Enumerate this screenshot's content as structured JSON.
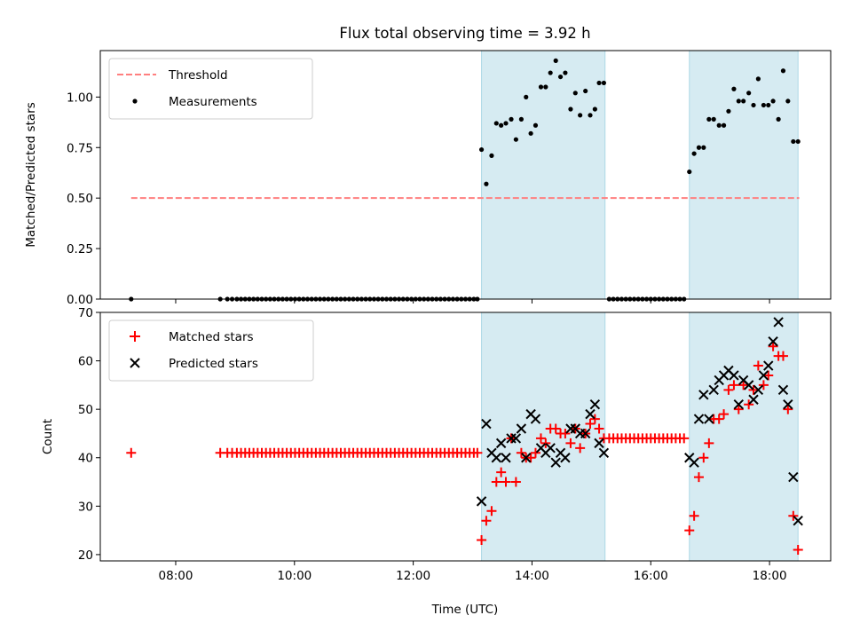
{
  "title": "Flux total observing time = 3.92 h",
  "colors": {
    "threshold": "#ff7f7f",
    "measurement": "#000000",
    "matched": "#ff0000",
    "predicted": "#000000",
    "shade": "#add8e6"
  },
  "chart_data": [
    {
      "type": "scatter",
      "ylabel": "Matched/Predicted stars",
      "ylim": [
        0,
        1.23
      ],
      "yticks": [
        0,
        0.25,
        0.5,
        0.75,
        1.0
      ],
      "ytick_labels": [
        "0.00",
        "0.25",
        "0.50",
        "0.75",
        "1.00"
      ],
      "xlim_hours": [
        6.73,
        19.03
      ],
      "xticks_hours": [
        8,
        10,
        12,
        14,
        16,
        18
      ],
      "xtick_labels": [
        "08:00",
        "10:00",
        "12:00",
        "14:00",
        "16:00",
        "18:00"
      ],
      "shaded_intervals_hours": [
        [
          13.15,
          15.23
        ],
        [
          16.65,
          18.48
        ]
      ],
      "legend": {
        "position": "top-left",
        "threshold_label": "Threshold",
        "measurements_label": "Measurements"
      },
      "threshold": {
        "value": 0.5,
        "x_range_hours": [
          7.25,
          18.5
        ]
      },
      "measurements": {
        "zero_times_hours": [
          7.25,
          8.75,
          8.87,
          8.95,
          9.03,
          9.1,
          9.17,
          9.24,
          9.31,
          9.38,
          9.45,
          9.52,
          9.59,
          9.66,
          9.73,
          9.8,
          9.87,
          9.94,
          10.01,
          10.08,
          10.15,
          10.22,
          10.29,
          10.36,
          10.43,
          10.5,
          10.57,
          10.64,
          10.71,
          10.78,
          10.85,
          10.92,
          10.99,
          11.06,
          11.13,
          11.2,
          11.27,
          11.34,
          11.41,
          11.48,
          11.55,
          11.62,
          11.69,
          11.76,
          11.83,
          11.9,
          11.97,
          12.04,
          12.11,
          12.18,
          12.25,
          12.32,
          12.39,
          12.46,
          12.53,
          12.6,
          12.67,
          12.74,
          12.81,
          12.88,
          12.95,
          13.02,
          13.08,
          15.3,
          15.37,
          15.44,
          15.51,
          15.58,
          15.65,
          15.72,
          15.79,
          15.86,
          15.93,
          16.0,
          16.07,
          16.14,
          16.21,
          16.28,
          16.35,
          16.42,
          16.49,
          16.56
        ],
        "points": [
          [
            13.15,
            0.74
          ],
          [
            13.23,
            0.57
          ],
          [
            13.32,
            0.71
          ],
          [
            13.4,
            0.87
          ],
          [
            13.48,
            0.86
          ],
          [
            13.56,
            0.87
          ],
          [
            13.65,
            0.89
          ],
          [
            13.73,
            0.79
          ],
          [
            13.82,
            0.89
          ],
          [
            13.9,
            1.0
          ],
          [
            13.98,
            0.82
          ],
          [
            14.06,
            0.86
          ],
          [
            14.15,
            1.05
          ],
          [
            14.23,
            1.05
          ],
          [
            14.31,
            1.12
          ],
          [
            14.4,
            1.18
          ],
          [
            14.48,
            1.1
          ],
          [
            14.56,
            1.12
          ],
          [
            14.65,
            0.94
          ],
          [
            14.73,
            1.02
          ],
          [
            14.81,
            0.91
          ],
          [
            14.9,
            1.03
          ],
          [
            14.98,
            0.91
          ],
          [
            15.06,
            0.94
          ],
          [
            15.13,
            1.07
          ],
          [
            15.21,
            1.07
          ],
          [
            16.65,
            0.63
          ],
          [
            16.73,
            0.72
          ],
          [
            16.81,
            0.75
          ],
          [
            16.89,
            0.75
          ],
          [
            16.98,
            0.89
          ],
          [
            17.06,
            0.89
          ],
          [
            17.15,
            0.86
          ],
          [
            17.23,
            0.86
          ],
          [
            17.31,
            0.93
          ],
          [
            17.4,
            1.04
          ],
          [
            17.48,
            0.98
          ],
          [
            17.56,
            0.98
          ],
          [
            17.65,
            1.02
          ],
          [
            17.73,
            0.96
          ],
          [
            17.81,
            1.09
          ],
          [
            17.9,
            0.96
          ],
          [
            17.98,
            0.96
          ],
          [
            18.06,
            0.98
          ],
          [
            18.15,
            0.89
          ],
          [
            18.23,
            1.13
          ],
          [
            18.31,
            0.98
          ],
          [
            18.4,
            0.78
          ],
          [
            18.48,
            0.78
          ]
        ]
      }
    },
    {
      "type": "scatter",
      "xlabel": "Time (UTC)",
      "ylabel": "Count",
      "ylim": [
        18.7,
        70
      ],
      "yticks": [
        20,
        30,
        40,
        50,
        60,
        70
      ],
      "ytick_labels": [
        "20",
        "30",
        "40",
        "50",
        "60",
        "70"
      ],
      "xlim_hours": [
        6.73,
        19.03
      ],
      "xticks_hours": [
        8,
        10,
        12,
        14,
        16,
        18
      ],
      "xtick_labels": [
        "08:00",
        "10:00",
        "12:00",
        "14:00",
        "16:00",
        "18:00"
      ],
      "shaded_intervals_hours": [
        [
          13.15,
          15.23
        ],
        [
          16.65,
          18.48
        ]
      ],
      "legend": {
        "position": "top-left",
        "matched_label": "Matched stars",
        "predicted_label": "Predicted stars"
      },
      "matched_stars": {
        "flat_segments": [
          {
            "value": 41,
            "times_hours": [
              7.25,
              8.75,
              8.87,
              8.95,
              9.03,
              9.1,
              9.17,
              9.24,
              9.31,
              9.38,
              9.45,
              9.52,
              9.59,
              9.66,
              9.73,
              9.8,
              9.87,
              9.94,
              10.01,
              10.08,
              10.15,
              10.22,
              10.29,
              10.36,
              10.43,
              10.5,
              10.57,
              10.64,
              10.71,
              10.78,
              10.85,
              10.92,
              10.99,
              11.06,
              11.13,
              11.2,
              11.27,
              11.34,
              11.41,
              11.48,
              11.55,
              11.62,
              11.69,
              11.76,
              11.83,
              11.9,
              11.97,
              12.04,
              12.11,
              12.18,
              12.25,
              12.32,
              12.39,
              12.46,
              12.53,
              12.6,
              12.67,
              12.74,
              12.81,
              12.88,
              12.95,
              13.02,
              13.08
            ]
          },
          {
            "value": 44,
            "times_hours": [
              15.3,
              15.37,
              15.44,
              15.51,
              15.58,
              15.65,
              15.72,
              15.79,
              15.86,
              15.93,
              16.0,
              16.07,
              16.14,
              16.21,
              16.28,
              16.35,
              16.42,
              16.49,
              16.56
            ]
          }
        ],
        "points": [
          [
            13.15,
            23
          ],
          [
            13.23,
            27
          ],
          [
            13.32,
            29
          ],
          [
            13.4,
            35
          ],
          [
            13.48,
            37
          ],
          [
            13.56,
            35
          ],
          [
            13.65,
            44
          ],
          [
            13.73,
            35
          ],
          [
            13.82,
            41
          ],
          [
            13.9,
            40
          ],
          [
            13.98,
            40
          ],
          [
            14.06,
            41
          ],
          [
            14.15,
            44
          ],
          [
            14.23,
            43
          ],
          [
            14.31,
            46
          ],
          [
            14.4,
            46
          ],
          [
            14.48,
            45
          ],
          [
            14.56,
            45
          ],
          [
            14.65,
            43
          ],
          [
            14.73,
            46
          ],
          [
            14.81,
            42
          ],
          [
            14.9,
            45
          ],
          [
            14.98,
            47
          ],
          [
            15.06,
            48
          ],
          [
            15.13,
            46
          ],
          [
            15.21,
            44
          ],
          [
            16.65,
            25
          ],
          [
            16.73,
            28
          ],
          [
            16.81,
            36
          ],
          [
            16.89,
            40
          ],
          [
            16.98,
            43
          ],
          [
            17.06,
            48
          ],
          [
            17.15,
            48
          ],
          [
            17.23,
            49
          ],
          [
            17.31,
            54
          ],
          [
            17.4,
            55
          ],
          [
            17.48,
            50
          ],
          [
            17.56,
            55
          ],
          [
            17.65,
            51
          ],
          [
            17.73,
            54
          ],
          [
            17.81,
            59
          ],
          [
            17.9,
            55
          ],
          [
            17.98,
            57
          ],
          [
            18.06,
            63
          ],
          [
            18.15,
            61
          ],
          [
            18.23,
            61
          ],
          [
            18.31,
            50
          ],
          [
            18.4,
            28
          ],
          [
            18.48,
            21
          ]
        ]
      },
      "predicted_stars": {
        "points": [
          [
            13.15,
            31
          ],
          [
            13.23,
            47
          ],
          [
            13.32,
            41
          ],
          [
            13.4,
            40
          ],
          [
            13.48,
            43
          ],
          [
            13.56,
            40
          ],
          [
            13.65,
            44
          ],
          [
            13.73,
            44
          ],
          [
            13.82,
            46
          ],
          [
            13.9,
            40
          ],
          [
            13.98,
            49
          ],
          [
            14.06,
            48
          ],
          [
            14.15,
            42
          ],
          [
            14.23,
            41
          ],
          [
            14.31,
            42
          ],
          [
            14.4,
            39
          ],
          [
            14.48,
            41
          ],
          [
            14.56,
            40
          ],
          [
            14.65,
            46
          ],
          [
            14.73,
            46
          ],
          [
            14.81,
            45
          ],
          [
            14.9,
            45
          ],
          [
            14.98,
            49
          ],
          [
            15.06,
            51
          ],
          [
            15.13,
            43
          ],
          [
            15.21,
            41
          ],
          [
            16.65,
            40
          ],
          [
            16.73,
            39
          ],
          [
            16.81,
            48
          ],
          [
            16.89,
            53
          ],
          [
            16.98,
            48
          ],
          [
            17.06,
            54
          ],
          [
            17.15,
            56
          ],
          [
            17.23,
            57
          ],
          [
            17.31,
            58
          ],
          [
            17.4,
            57
          ],
          [
            17.48,
            51
          ],
          [
            17.56,
            56
          ],
          [
            17.65,
            55
          ],
          [
            17.73,
            52
          ],
          [
            17.81,
            54
          ],
          [
            17.9,
            57
          ],
          [
            17.98,
            59
          ],
          [
            18.06,
            64
          ],
          [
            18.15,
            68
          ],
          [
            18.23,
            54
          ],
          [
            18.31,
            51
          ],
          [
            18.4,
            36
          ],
          [
            18.48,
            27
          ]
        ]
      }
    }
  ]
}
